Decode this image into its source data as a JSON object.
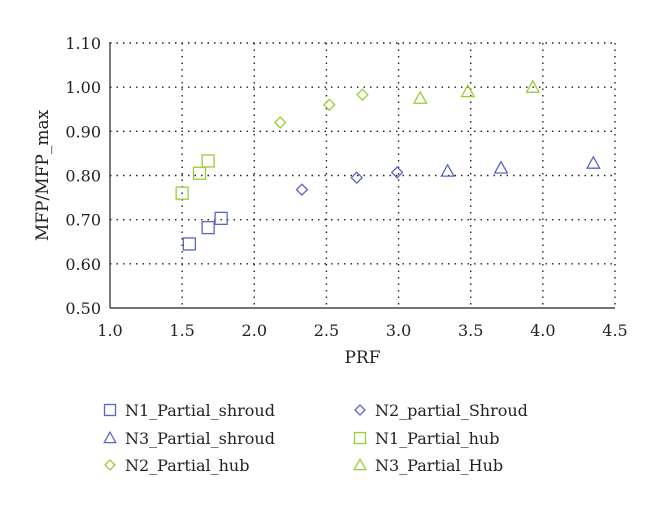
{
  "chart_data": {
    "type": "scatter",
    "title": "",
    "xlabel": "PRF",
    "ylabel": "MFP/MFP_max",
    "xlim": [
      1.0,
      4.5
    ],
    "ylim": [
      0.5,
      1.1
    ],
    "xticks": [
      "1.0",
      "1.5",
      "2.0",
      "2.5",
      "3.0",
      "3.5",
      "4.0",
      "4.5"
    ],
    "yticks": [
      "0.50",
      "0.60",
      "0.70",
      "0.80",
      "0.90",
      "1.00",
      "1.10"
    ],
    "grid": true,
    "legend_position": "bottom",
    "series": [
      {
        "name": "N1_Partial_shroud",
        "marker": "square",
        "color": "#5b63c9",
        "x": [
          1.55,
          1.68,
          1.77
        ],
        "y": [
          0.645,
          0.682,
          0.703
        ]
      },
      {
        "name": "N2_partial_Shroud",
        "marker": "diamond",
        "color": "#5b63c9",
        "x": [
          2.33,
          2.71,
          2.99
        ],
        "y": [
          0.768,
          0.795,
          0.807
        ]
      },
      {
        "name": "N3_Partial_shroud",
        "marker": "triangle",
        "color": "#5b63c9",
        "x": [
          3.34,
          3.71,
          4.35
        ],
        "y": [
          0.81,
          0.817,
          0.828
        ]
      },
      {
        "name": "N1_Partial_hub",
        "marker": "square",
        "color": "#9acd32",
        "x": [
          1.5,
          1.62,
          1.68
        ],
        "y": [
          0.76,
          0.805,
          0.833
        ]
      },
      {
        "name": "N2_Partial_hub",
        "marker": "diamond",
        "color": "#9acd32",
        "x": [
          2.18,
          2.52,
          2.75
        ],
        "y": [
          0.92,
          0.96,
          0.983
        ]
      },
      {
        "name": "N3_Partial_Hub",
        "marker": "triangle",
        "color": "#9acd32",
        "x": [
          3.15,
          3.48,
          3.93
        ],
        "y": [
          0.975,
          0.99,
          1.0
        ]
      }
    ]
  }
}
